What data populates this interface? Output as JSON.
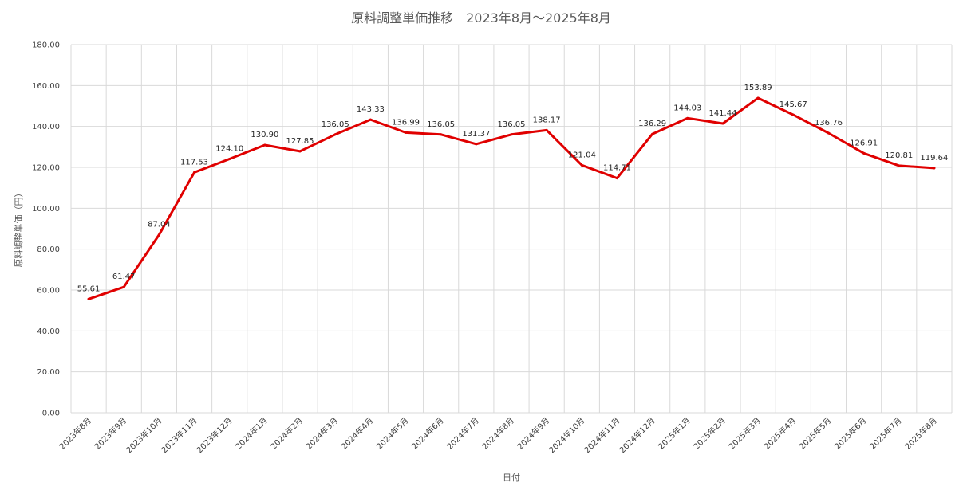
{
  "chart_data": {
    "type": "line",
    "title": "原料調整単価推移　2023年8月～2025年8月",
    "xlabel": "日付",
    "ylabel": "原料調整単価（円）",
    "ylim": [
      0,
      180
    ],
    "ytick_step": 20,
    "ytick_labels": [
      "0.00",
      "20.00",
      "40.00",
      "60.00",
      "80.00",
      "100.00",
      "120.00",
      "140.00",
      "160.00",
      "180.00"
    ],
    "grid": true,
    "legend": "none",
    "line_color": "#E00000",
    "categories": [
      "2023年8月",
      "2023年9月",
      "2023年10月",
      "2023年11月",
      "2023年12月",
      "2024年1月",
      "2024年2月",
      "2024年3月",
      "2024年4月",
      "2024年5月",
      "2024年6月",
      "2024年7月",
      "2024年8月",
      "2024年9月",
      "2024年10月",
      "2024年11月",
      "2024年12月",
      "2025年1月",
      "2025年2月",
      "2025年3月",
      "2025年4月",
      "2025年5月",
      "2025年6月",
      "2025年7月",
      "2025年8月"
    ],
    "series": [
      {
        "values": [
          55.61,
          61.47,
          87.04,
          117.53,
          124.1,
          130.9,
          127.85,
          136.05,
          143.33,
          136.99,
          136.05,
          131.37,
          136.05,
          138.17,
          121.04,
          114.71,
          136.29,
          144.03,
          141.44,
          153.89,
          145.67,
          136.76,
          126.91,
          120.81,
          119.64
        ],
        "labels": [
          "55.61",
          "61.47",
          "87.04",
          "117.53",
          "124.10",
          "130.90",
          "127.85",
          "136.05",
          "143.33",
          "136.99",
          "136.05",
          "131.37",
          "136.05",
          "138.17",
          "121.04",
          "114.71",
          "136.29",
          "144.03",
          "141.44",
          "153.89",
          "145.67",
          "136.76",
          "126.91",
          "120.81",
          "119.64"
        ]
      }
    ]
  }
}
